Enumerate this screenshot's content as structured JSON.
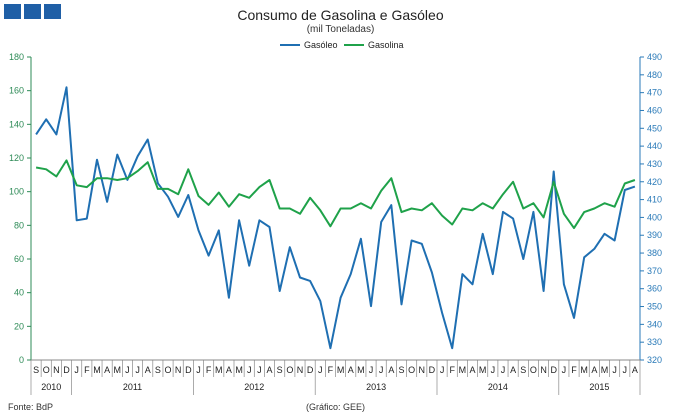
{
  "header": {
    "logo_name": "logo"
  },
  "chart_data": {
    "type": "line",
    "title": "Consumo de Gasolina e Gasóleo",
    "subtitle": "(mil Toneladas)",
    "legend_position": "top-center",
    "grid": false,
    "colors": {
      "gasoleo": "#1f6fb2",
      "gasolina": "#1fa24a",
      "axis_left": "#2e8b57",
      "axis_right": "#2a7ab8"
    },
    "y_left": {
      "min": 0,
      "max": 180,
      "step": 20
    },
    "y_right": {
      "min": 320,
      "max": 490,
      "step": 10
    },
    "months": [
      "S",
      "O",
      "N",
      "D",
      "J",
      "F",
      "M",
      "A",
      "M",
      "J",
      "J",
      "A",
      "S",
      "O",
      "N",
      "D",
      "J",
      "F",
      "M",
      "A",
      "M",
      "J",
      "J",
      "A",
      "S",
      "O",
      "N",
      "D",
      "J",
      "F",
      "M",
      "A",
      "M",
      "J",
      "J",
      "A",
      "S",
      "O",
      "N",
      "D",
      "J",
      "F",
      "M",
      "A",
      "M",
      "J",
      "J",
      "A",
      "S",
      "O",
      "N",
      "D",
      "J",
      "F",
      "M",
      "A",
      "M",
      "J",
      "J",
      "A"
    ],
    "years": [
      {
        "label": "2010",
        "count": 4
      },
      {
        "label": "2011",
        "count": 12
      },
      {
        "label": "2012",
        "count": 12
      },
      {
        "label": "2013",
        "count": 12
      },
      {
        "label": "2014",
        "count": 12
      },
      {
        "label": "2015",
        "count": 8
      }
    ],
    "series": [
      {
        "name": "Gasóleo",
        "axis": "left",
        "values": [
          134,
          143,
          134,
          162,
          83,
          84,
          119,
          94,
          122,
          107,
          121,
          131,
          105,
          97,
          85,
          98,
          77,
          62,
          77,
          37,
          83,
          56,
          83,
          79,
          41,
          67,
          49,
          47,
          35,
          7,
          37,
          51,
          72,
          32,
          82,
          92,
          33,
          71,
          69,
          52,
          28,
          7,
          51,
          45,
          75,
          51,
          88,
          84,
          60,
          88,
          41,
          112,
          45,
          25,
          61,
          66,
          75,
          71,
          101,
          103
        ]
      },
      {
        "name": "Gasolina",
        "axis": "right",
        "values": [
          428,
          427,
          423,
          432,
          418,
          417,
          422,
          422,
          421,
          422,
          426,
          431,
          416,
          416,
          413,
          427,
          412,
          407,
          414,
          406,
          413,
          411,
          417,
          421,
          405,
          405,
          402,
          411,
          404,
          395,
          405,
          405,
          408,
          405,
          415,
          422,
          403,
          405,
          404,
          408,
          401,
          396,
          405,
          404,
          408,
          405,
          413,
          420,
          405,
          408,
          400,
          420,
          402,
          394,
          403,
          405,
          408,
          406,
          419,
          421
        ]
      }
    ],
    "source_label": "Fonte: BdP",
    "credit_label": "(Gráfico: GEE)"
  }
}
